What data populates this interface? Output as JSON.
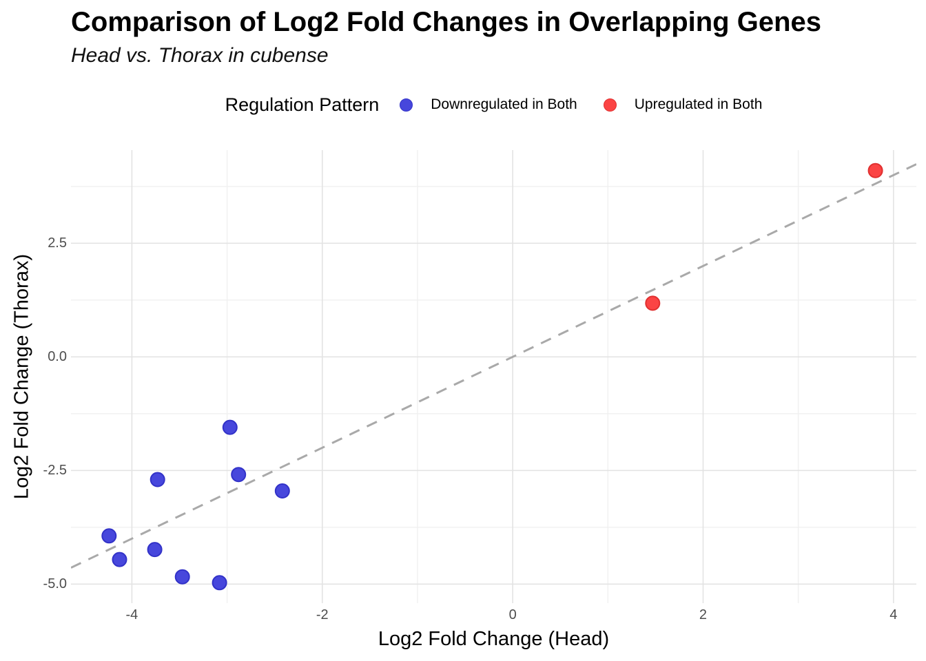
{
  "title": "Comparison of Log2 Fold Changes in Overlapping Genes",
  "subtitle": "Head vs. Thorax in cubense",
  "legend": {
    "title": "Regulation Pattern",
    "items": [
      {
        "id": "downregulated",
        "label": "Downregulated in Both",
        "fill": "#4747DC",
        "stroke": "#3232C8"
      },
      {
        "id": "upregulated",
        "label": "Upregulated in Both",
        "fill": "#FB4444",
        "stroke": "#E03030"
      }
    ]
  },
  "chart_data": {
    "type": "scatter",
    "title": "Comparison of Log2 Fold Changes in Overlapping Genes",
    "subtitle": "Head vs. Thorax in cubense",
    "xlabel": "Log2 Fold Change (Head)",
    "ylabel": "Log2 Fold Change (Thorax)",
    "xlim": [
      -4.64,
      4.24
    ],
    "ylim": [
      -5.42,
      4.55
    ],
    "x_ticks": {
      "major": [
        -4,
        -2,
        0,
        2,
        4
      ],
      "major_labels": [
        "-4",
        "-2",
        "0",
        "2",
        "4"
      ],
      "minor": [
        -3,
        -1,
        1,
        3
      ]
    },
    "y_ticks": {
      "major": [
        2.5,
        0,
        -2.5,
        -5
      ],
      "major_labels": [
        "2.5",
        "0.0",
        "-2.5",
        "-5.0"
      ],
      "minor": [
        3.75,
        1.25,
        -1.25,
        -3.75
      ]
    },
    "grid": {
      "show": true,
      "major_color": "#E3E3E3",
      "minor_color": "#F0F0F0"
    },
    "reference_line": {
      "type": "identity y=x",
      "style": "dashed",
      "color": "#A9A9A9"
    },
    "legend_position": "top",
    "point_radius_px": 10,
    "series": [
      {
        "name": "Downregulated in Both",
        "fill": "#4747DC",
        "stroke": "#3232C8",
        "points": [
          [
            -4.24,
            -3.94
          ],
          [
            -4.13,
            -4.46
          ],
          [
            -3.76,
            -4.24
          ],
          [
            -3.73,
            -2.7
          ],
          [
            -3.47,
            -4.84
          ],
          [
            -3.08,
            -4.97
          ],
          [
            -2.97,
            -1.55
          ],
          [
            -2.88,
            -2.59
          ],
          [
            -2.42,
            -2.95
          ]
        ]
      },
      {
        "name": "Upregulated in Both",
        "fill": "#FB4444",
        "stroke": "#E03030",
        "points": [
          [
            1.47,
            1.18
          ],
          [
            3.81,
            4.1
          ]
        ]
      }
    ]
  }
}
